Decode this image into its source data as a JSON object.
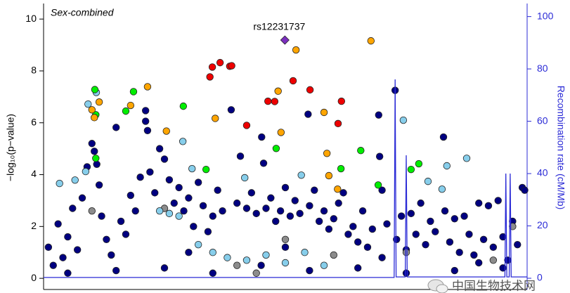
{
  "chart_data": {
    "type": "scatter",
    "title": "Sex-combined",
    "y_label": "−log₁₀(p−value)",
    "y2_label": "Recombination rate (cM/Mb)",
    "watermark": "中国生物技术网",
    "xlim": [
      0,
      100
    ],
    "ylim": [
      -0.43,
      10.6
    ],
    "yticks": [
      0,
      2,
      4,
      6,
      8,
      10
    ],
    "y2lim": [
      -4.3,
      105
    ],
    "y2ticks": [
      0,
      20,
      40,
      60,
      80,
      100
    ],
    "y2_color": "#2b2bd6",
    "series": [
      {
        "color": "#000080",
        "marker": "circle",
        "x": [
          1,
          2,
          3,
          4,
          5,
          6,
          7,
          8,
          9,
          10,
          10.5,
          11,
          11.5,
          12,
          13,
          14,
          15,
          16,
          17,
          18,
          19,
          20,
          21.1,
          21.1,
          21.5,
          22,
          23,
          24,
          25,
          26,
          27,
          28,
          29,
          30,
          31,
          32,
          33,
          34,
          35,
          36,
          37,
          38.8,
          40,
          40.7,
          42,
          43,
          44,
          45.1,
          45.5,
          46,
          47,
          48,
          49,
          50,
          51,
          52,
          53,
          54.7,
          55,
          56,
          57,
          58,
          59,
          60,
          61,
          62,
          63,
          64,
          65,
          66,
          67,
          68,
          69.3,
          69.5,
          70,
          71,
          72.7,
          73,
          74,
          75,
          76,
          77,
          78,
          79,
          80,
          81,
          82.7,
          83,
          84,
          85,
          86,
          87,
          88,
          89,
          90,
          91,
          92,
          93,
          94,
          95,
          96,
          97,
          98,
          99,
          99.5,
          5,
          15,
          25,
          35,
          45,
          55,
          65,
          75,
          85,
          95,
          30,
          50,
          70,
          90
        ],
        "values": [
          1.2,
          0.5,
          2.1,
          0.8,
          1.6,
          2.7,
          1.1,
          3.1,
          4.3,
          5.2,
          4.9,
          4.4,
          3.6,
          2.4,
          1.5,
          0.9,
          5.82,
          2.2,
          1.7,
          3.2,
          2.6,
          3.9,
          6.47,
          6.06,
          5.7,
          4.1,
          3.3,
          5.0,
          4.6,
          3.8,
          2.9,
          3.5,
          2.6,
          3.1,
          2.0,
          3.7,
          2.8,
          1.8,
          2.4,
          3.4,
          2.6,
          6.5,
          2.9,
          4.71,
          2.7,
          3.3,
          2.5,
          5.45,
          4.44,
          2.7,
          3.1,
          2.2,
          2.6,
          3.5,
          2.4,
          3.0,
          2.5,
          6.33,
          2.8,
          3.4,
          2.2,
          2.6,
          1.9,
          2.3,
          2.9,
          3.3,
          1.7,
          2.0,
          1.4,
          2.6,
          1.2,
          1.9,
          6.3,
          4.7,
          3.4,
          2.1,
          7.25,
          1.5,
          2.4,
          1.1,
          2.5,
          1.7,
          2.9,
          1.3,
          2.2,
          1.8,
          5.45,
          2.6,
          1.4,
          2.3,
          1.0,
          2.4,
          1.7,
          0.9,
          2.9,
          1.5,
          2.8,
          1.2,
          3.0,
          1.6,
          0.7,
          2.2,
          1.3,
          3.5,
          3.4,
          0.2,
          0.3,
          0.4,
          0.2,
          0.5,
          0.3,
          0.4,
          0.2,
          0.3,
          0.4,
          1.0,
          1.2,
          0.8,
          0.6
        ]
      },
      {
        "color": "#8c8c8c",
        "marker": "circle",
        "x": [
          10,
          25,
          40,
          50,
          60,
          75,
          97,
          93,
          44
        ],
        "values": [
          2.6,
          2.7,
          0.5,
          1.5,
          0.9,
          1.0,
          2.0,
          0.7,
          0.2
        ]
      },
      {
        "color": "#87ceeb",
        "marker": "circle",
        "x": [
          9.2,
          10.9,
          3.3,
          6.5,
          8.7,
          28.8,
          30.7,
          41.6,
          53.3,
          74.4,
          83.4,
          87.5,
          79.5,
          82.4,
          32,
          35,
          38,
          42,
          46,
          50,
          54,
          58,
          26,
          28,
          24
        ],
        "values": [
          6.72,
          7.17,
          3.66,
          3.79,
          4.12,
          5.28,
          4.23,
          3.88,
          3.98,
          6.1,
          4.34,
          4.63,
          3.74,
          3.44,
          1.3,
          1.0,
          0.8,
          0.7,
          0.9,
          0.6,
          1.0,
          0.5,
          2.5,
          2.4,
          2.6
        ]
      },
      {
        "color": "#00ee00",
        "marker": "circle",
        "x": [
          10.6,
          18.6,
          17.0,
          10.8,
          28.9,
          10.8,
          33.6,
          48.1,
          61.5,
          65.6,
          76.0,
          77.6,
          69.2
        ],
        "values": [
          7.28,
          7.2,
          6.45,
          6.31,
          6.64,
          4.63,
          4.2,
          5.01,
          4.23,
          4.93,
          4.2,
          4.42,
          3.6
        ]
      },
      {
        "color": "#ffa500",
        "marker": "circle",
        "x": [
          52.2,
          67.7,
          21.5,
          18.0,
          11.5,
          10.0,
          10.5,
          25.4,
          35.5,
          48.5,
          49.1,
          58.0,
          58.6,
          59.0,
          60.8
        ],
        "values": [
          8.81,
          9.16,
          7.39,
          6.67,
          6.8,
          6.5,
          6.2,
          5.68,
          6.17,
          7.22,
          5.63,
          6.4,
          4.82,
          3.96,
          3.44
        ]
      },
      {
        "color": "#ee0000",
        "marker": "circle",
        "x": [
          34.9,
          36.5,
          38.5,
          38.9,
          34.4,
          42.0,
          46.4,
          47.8,
          51.6,
          55.1,
          61.6,
          60.9
        ],
        "values": [
          8.15,
          8.32,
          8.18,
          8.2,
          7.77,
          5.9,
          6.83,
          6.82,
          7.62,
          7.27,
          6.83,
          5.97
        ]
      },
      {
        "color": "#7b2fbe",
        "marker": "diamond",
        "label": "rs12231737",
        "x": [
          49.9
        ],
        "values": [
          9.19
        ]
      },
      {
        "color": "#2b2bd6",
        "marker": "line",
        "axis": "y2",
        "x": [
          0,
          72.5,
          72.7,
          72.9,
          74.8,
          75.0,
          75.2,
          95.4,
          95.6,
          95.8,
          96.3,
          96.5,
          96.7,
          100
        ],
        "values": [
          0.3,
          0.3,
          76,
          0.5,
          0.5,
          47,
          0.5,
          0.5,
          40,
          0.5,
          0.5,
          40,
          0.5,
          0.5
        ]
      }
    ]
  }
}
